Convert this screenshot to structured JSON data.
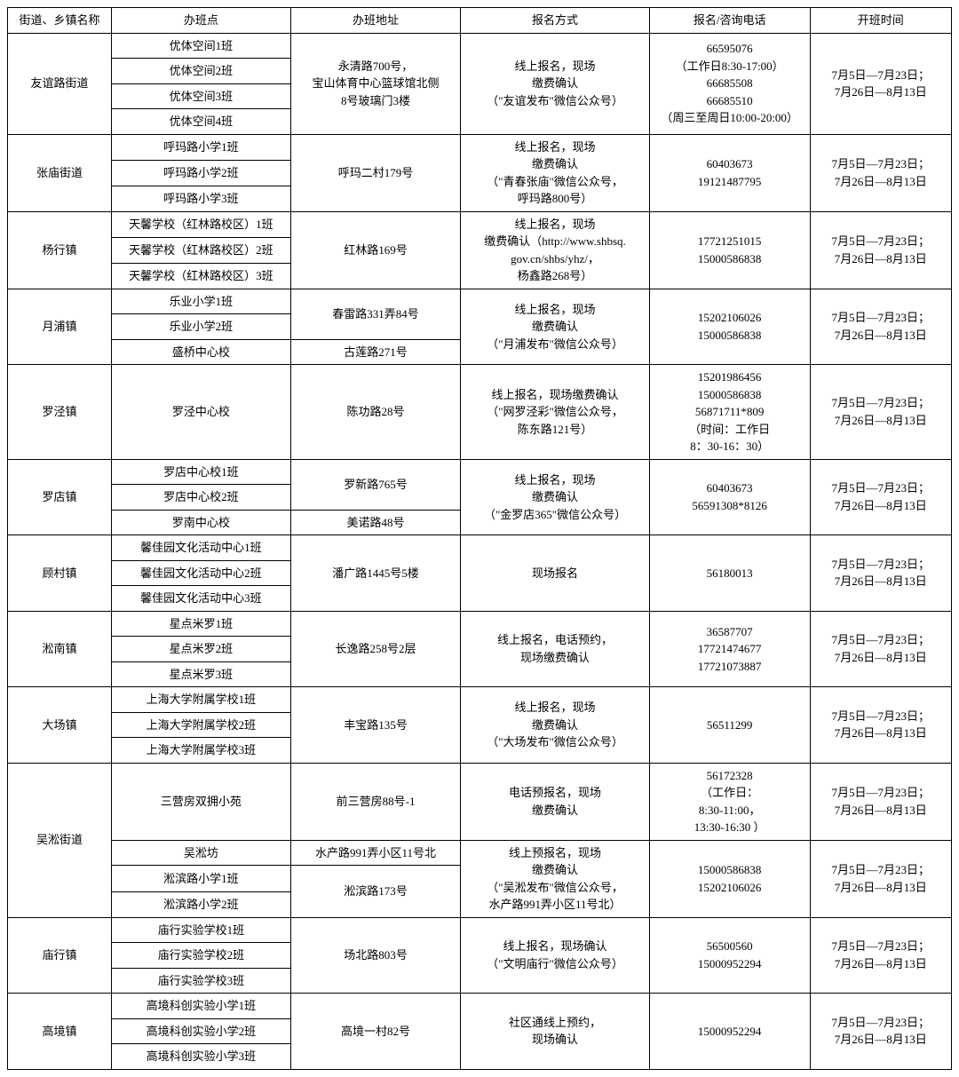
{
  "headers": [
    "街道、乡镇名称",
    "办班点",
    "办班地址",
    "报名方式",
    "报名/咨询电话",
    "开班时间"
  ],
  "time_default": "7月5日—7月23日；\n7月26日—8月13日",
  "rows": [
    {
      "district": "友谊路街道",
      "classes": [
        "优体空间1班",
        "优体空间2班",
        "优体空间3班",
        "优体空间4班"
      ],
      "addr": "永清路700号，\n宝山体育中心篮球馆北侧\n8号玻璃门3楼",
      "signup": "线上报名，现场\n缴费确认\n（\"友谊发布\"微信公众号）",
      "phone": "66595076\n（工作日8:30-17:00）\n66685508\n66685510\n（周三至周日10:00-20:00）"
    },
    {
      "district": "张庙街道",
      "classes": [
        "呼玛路小学1班",
        "呼玛路小学2班",
        "呼玛路小学3班"
      ],
      "addr": "呼玛二村179号",
      "signup": "线上报名，现场\n缴费确认\n（\"青春张庙\"微信公众号，\n呼玛路800号）",
      "phone": "60403673\n19121487795"
    },
    {
      "district": "杨行镇",
      "classes": [
        "天馨学校（红林路校区）1班",
        "天馨学校（红林路校区）2班",
        "天馨学校（红林路校区）3班"
      ],
      "addr": "红林路169号",
      "signup": "线上报名，现场\n缴费确认（http://www.shbsq.\ngov.cn/shbs/yhz/，\n杨鑫路268号）",
      "phone": "17721251015\n15000586838"
    },
    {
      "district": "月浦镇",
      "rows": [
        {
          "class": "乐业小学1班",
          "addr": "春雷路331弄84号",
          "addr_span": 2
        },
        {
          "class": "乐业小学2班"
        },
        {
          "class": "盛桥中心校",
          "addr": "古莲路271号",
          "addr_span": 1
        }
      ],
      "signup": "线上报名，现场\n缴费确认\n（\"月浦发布\"微信公众号）",
      "phone": "15202106026\n15000586838"
    },
    {
      "district": "罗泾镇",
      "classes": [
        "罗泾中心校"
      ],
      "addr": "陈功路28号",
      "signup": "线上报名，现场缴费确认\n（\"网罗泾彩\"微信公众号，\n陈东路121号）",
      "phone": "15201986456\n15000586838\n56871711*809\n（时间：工作日\n8：30-16：30）"
    },
    {
      "district": "罗店镇",
      "rows": [
        {
          "class": "罗店中心校1班",
          "addr": "罗新路765号",
          "addr_span": 2
        },
        {
          "class": "罗店中心校2班"
        },
        {
          "class": "罗南中心校",
          "addr": "美诺路48号",
          "addr_span": 1
        }
      ],
      "signup": "线上报名，现场\n缴费确认\n（\"金罗店365\"微信公众号）",
      "phone": "60403673\n56591308*8126"
    },
    {
      "district": "顾村镇",
      "classes": [
        "馨佳园文化活动中心1班",
        "馨佳园文化活动中心2班",
        "馨佳园文化活动中心3班"
      ],
      "addr": "潘广路1445号5楼",
      "signup": "现场报名",
      "phone": "56180013"
    },
    {
      "district": "淞南镇",
      "classes": [
        "星点米罗1班",
        "星点米罗2班",
        "星点米罗3班"
      ],
      "addr": "长逸路258号2层",
      "signup": "线上报名，电话预约，\n现场缴费确认",
      "phone": "36587707\n17721474677\n17721073887"
    },
    {
      "district": "大场镇",
      "classes": [
        "上海大学附属学校1班",
        "上海大学附属学校2班",
        "上海大学附属学校3班"
      ],
      "addr": "丰宝路135号",
      "signup": "线上报名，现场\n缴费确认\n（\"大场发布\"微信公众号）",
      "phone": "56511299"
    },
    {
      "district": "吴淞街道",
      "groups": [
        {
          "classes": [
            "三营房双拥小苑"
          ],
          "addr": "前三营房88号-1",
          "signup": "电话预报名，现场\n缴费确认",
          "phone": "56172328\n（工作日：\n8:30-11:00，\n13:30-16:30 ）",
          "time": "7月5日—7月23日；\n7月26日—8月13日"
        },
        {
          "rows": [
            {
              "class": "吴淞坊",
              "addr": "水产路991弄小区11号北",
              "addr_span": 1
            },
            {
              "class": "淞滨路小学1班",
              "addr": "淞滨路173号",
              "addr_span": 2
            },
            {
              "class": "淞滨路小学2班"
            }
          ],
          "signup": "线上预报名，现场\n缴费确认\n（\"吴淞发布\"微信公众号，\n水产路991弄小区11号北）",
          "phone": "15000586838\n15202106026",
          "time": "7月5日—7月23日；\n7月26日—8月13日"
        }
      ]
    },
    {
      "district": "庙行镇",
      "classes": [
        "庙行实验学校1班",
        "庙行实验学校2班",
        "庙行实验学校3班"
      ],
      "addr": "场北路803号",
      "signup": "线上报名，现场确认\n（\"文明庙行\"微信公众号）",
      "phone": "56500560\n15000952294"
    },
    {
      "district": "高境镇",
      "classes": [
        "高境科创实验小学1班",
        "高境科创实验小学2班",
        "高境科创实验小学3班"
      ],
      "addr": "高境一村82号",
      "signup": "社区通线上预约，\n现场确认",
      "phone": "15000952294"
    }
  ]
}
